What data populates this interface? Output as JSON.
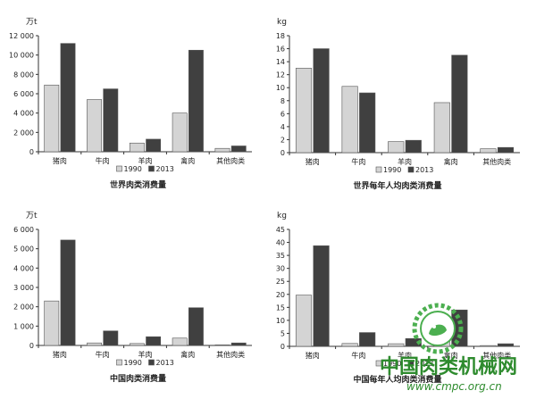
{
  "chart_data": [
    {
      "type": "bar",
      "unit": "万t",
      "categories": [
        "猪肉",
        "牛肉",
        "羊肉",
        "禽肉",
        "其他肉类"
      ],
      "series": [
        {
          "name": "1990",
          "values": [
            6900,
            5400,
            900,
            4000,
            350
          ],
          "color": "#d4d4d4"
        },
        {
          "name": "2013",
          "values": [
            11200,
            6500,
            1300,
            10500,
            600
          ],
          "color": "#404040"
        }
      ],
      "yticks": [
        "0",
        "2 000",
        "4 000",
        "6 000",
        "8 000",
        "10 000",
        "12 000"
      ],
      "ylim": [
        0,
        12000
      ],
      "caption": "世界肉类消费量",
      "legend": "bottom-center"
    },
    {
      "type": "bar",
      "unit": "kg",
      "categories": [
        "猪肉",
        "牛肉",
        "羊肉",
        "禽肉",
        "其他肉类"
      ],
      "series": [
        {
          "name": "1990",
          "values": [
            13,
            10.2,
            1.7,
            7.7,
            0.6
          ],
          "color": "#d4d4d4"
        },
        {
          "name": "2013",
          "values": [
            16,
            9.2,
            1.9,
            15,
            0.8
          ],
          "color": "#404040"
        }
      ],
      "yticks": [
        "0",
        "2",
        "4",
        "6",
        "8",
        "10",
        "12",
        "14",
        "16",
        "18"
      ],
      "ylim": [
        0,
        18
      ],
      "caption": "世界每年人均肉类消费量",
      "legend": "bottom-center"
    },
    {
      "type": "bar",
      "unit": "万t",
      "categories": [
        "猪肉",
        "牛肉",
        "羊肉",
        "禽肉",
        "其他肉类"
      ],
      "series": [
        {
          "name": "1990",
          "values": [
            2300,
            130,
            100,
            380,
            30
          ],
          "color": "#d4d4d4"
        },
        {
          "name": "2013",
          "values": [
            5450,
            750,
            450,
            1950,
            130
          ],
          "color": "#404040"
        }
      ],
      "yticks": [
        "0",
        "1 000",
        "2 000",
        "3 000",
        "4 000",
        "5 000",
        "6 000"
      ],
      "ylim": [
        0,
        6000
      ],
      "caption": "中国肉类消费量",
      "legend": "bottom-center"
    },
    {
      "type": "bar",
      "unit": "kg",
      "categories": [
        "猪肉",
        "牛肉",
        "羊肉",
        "禽肉",
        "其他肉类"
      ],
      "series": [
        {
          "name": "1990",
          "values": [
            19.7,
            1.1,
            1.0,
            3.6,
            0.3
          ],
          "color": "#d4d4d4"
        },
        {
          "name": "2013",
          "values": [
            38.7,
            5.3,
            3.0,
            14.0,
            1.0
          ],
          "color": "#404040"
        }
      ],
      "yticks": [
        "0",
        "5",
        "10",
        "15",
        "20",
        "25",
        "30",
        "35",
        "40",
        "45"
      ],
      "ylim": [
        0,
        45
      ],
      "caption": "中国每年人均肉类消费量",
      "legend": "bottom-center"
    }
  ],
  "watermark": {
    "text": "中国肉类机械网",
    "url": "www.cmpc.org.cn",
    "color": "#2e8b2e"
  }
}
